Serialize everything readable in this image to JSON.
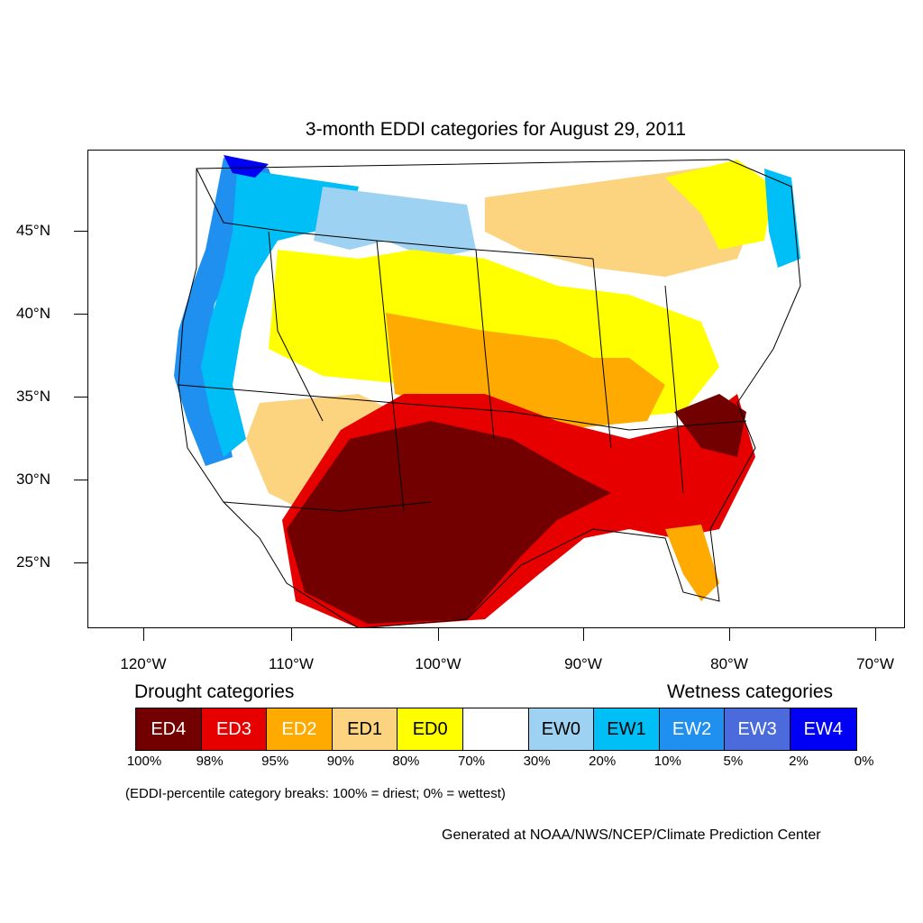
{
  "title": "3-month EDDI categories for August 29, 2011",
  "axes": {
    "y_ticks": [
      "45°N",
      "40°N",
      "35°N",
      "30°N",
      "25°N"
    ],
    "x_ticks": [
      "120°W",
      "110°W",
      "100°W",
      "90°W",
      "80°W",
      "70°W"
    ]
  },
  "legend": {
    "drought_heading": "Drought categories",
    "wetness_heading": "Wetness categories",
    "categories": [
      {
        "label": "ED4",
        "color": "#730000",
        "text_color": "#ffffff"
      },
      {
        "label": "ED3",
        "color": "#e60000",
        "text_color": "#ffffff"
      },
      {
        "label": "ED2",
        "color": "#ffaa00",
        "text_color": "#ffffff"
      },
      {
        "label": "ED1",
        "color": "#fcd37f",
        "text_color": "#000000"
      },
      {
        "label": "ED0",
        "color": "#ffff00",
        "text_color": "#000000"
      },
      {
        "label": "",
        "color": "#ffffff",
        "text_color": "#000000"
      },
      {
        "label": "EW0",
        "color": "#9dd2f2",
        "text_color": "#000000"
      },
      {
        "label": "EW1",
        "color": "#00bff7",
        "text_color": "#000000"
      },
      {
        "label": "EW2",
        "color": "#1f8ff0",
        "text_color": "#ffffff"
      },
      {
        "label": "EW3",
        "color": "#4b6bdc",
        "text_color": "#ffffff"
      },
      {
        "label": "EW4",
        "color": "#0000f5",
        "text_color": "#ffffff"
      }
    ],
    "breaks": [
      "100%",
      "98%",
      "95%",
      "90%",
      "80%",
      "70%",
      "30%",
      "20%",
      "10%",
      "5%",
      "2%",
      "0%"
    ]
  },
  "note": "(EDDI-percentile category breaks: 100% = driest; 0% = wettest)",
  "credit": "Generated at NOAA/NWS/NCEP/Climate Prediction Center"
}
